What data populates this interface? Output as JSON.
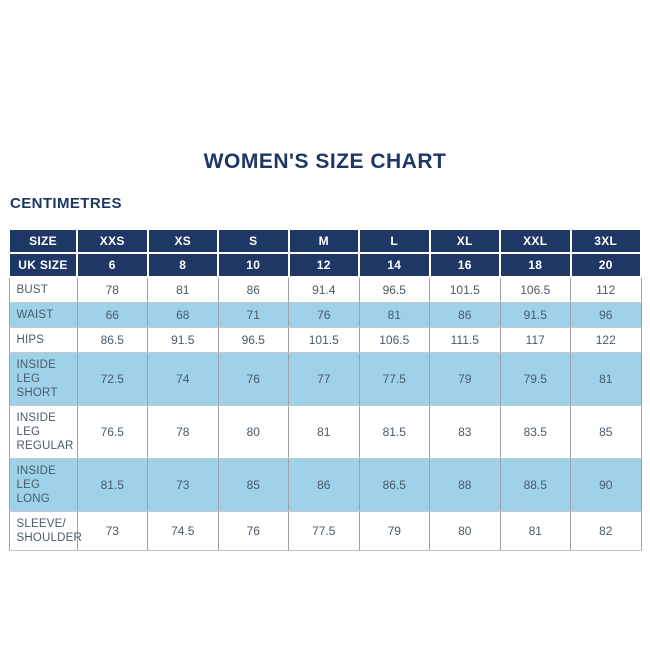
{
  "chart_data": {
    "type": "table",
    "title": "WOMEN'S SIZE CHART",
    "unit_label": "CENTIMETRES",
    "header_rows": [
      {
        "label": "SIZE",
        "values": [
          "XXS",
          "XS",
          "S",
          "M",
          "L",
          "XL",
          "XXL",
          "3XL"
        ]
      },
      {
        "label": "UK SIZE",
        "values": [
          "6",
          "8",
          "10",
          "12",
          "14",
          "16",
          "18",
          "20"
        ]
      }
    ],
    "rows": [
      {
        "label": "BUST",
        "values": [
          "78",
          "81",
          "86",
          "91.4",
          "96.5",
          "101.5",
          "106.5",
          "112"
        ],
        "shaded": false
      },
      {
        "label": "WAIST",
        "values": [
          "66",
          "68",
          "71",
          "76",
          "81",
          "86",
          "91.5",
          "96"
        ],
        "shaded": true
      },
      {
        "label": "HIPS",
        "values": [
          "86.5",
          "91.5",
          "96.5",
          "101.5",
          "106.5",
          "111.5",
          "117",
          "122"
        ],
        "shaded": false
      },
      {
        "label": "INSIDE LEG\nSHORT",
        "values": [
          "72.5",
          "74",
          "76",
          "77",
          "77.5",
          "79",
          "79.5",
          "81"
        ],
        "shaded": true
      },
      {
        "label": "INSIDE LEG\nREGULAR",
        "values": [
          "76.5",
          "78",
          "80",
          "81",
          "81.5",
          "83",
          "83.5",
          "85"
        ],
        "shaded": false
      },
      {
        "label": "INSIDE LEG\nLONG",
        "values": [
          "81.5",
          "73",
          "85",
          "86",
          "86.5",
          "88",
          "88.5",
          "90"
        ],
        "shaded": true
      },
      {
        "label": "SLEEVE/\nSHOULDER",
        "values": [
          "73",
          "74.5",
          "76",
          "77.5",
          "79",
          "80",
          "81",
          "82"
        ],
        "shaded": false
      }
    ],
    "layout": {
      "grid": true,
      "shading_note": "alternating rows light blue"
    }
  },
  "colors": {
    "navy": "#1e3765",
    "row_blue": "#9fd2e9",
    "body_text": "#4a5a6a",
    "border_vertical": "#9aa1a8",
    "border_horizontal": "#c4c8cc",
    "header_text": "#ffffff"
  }
}
